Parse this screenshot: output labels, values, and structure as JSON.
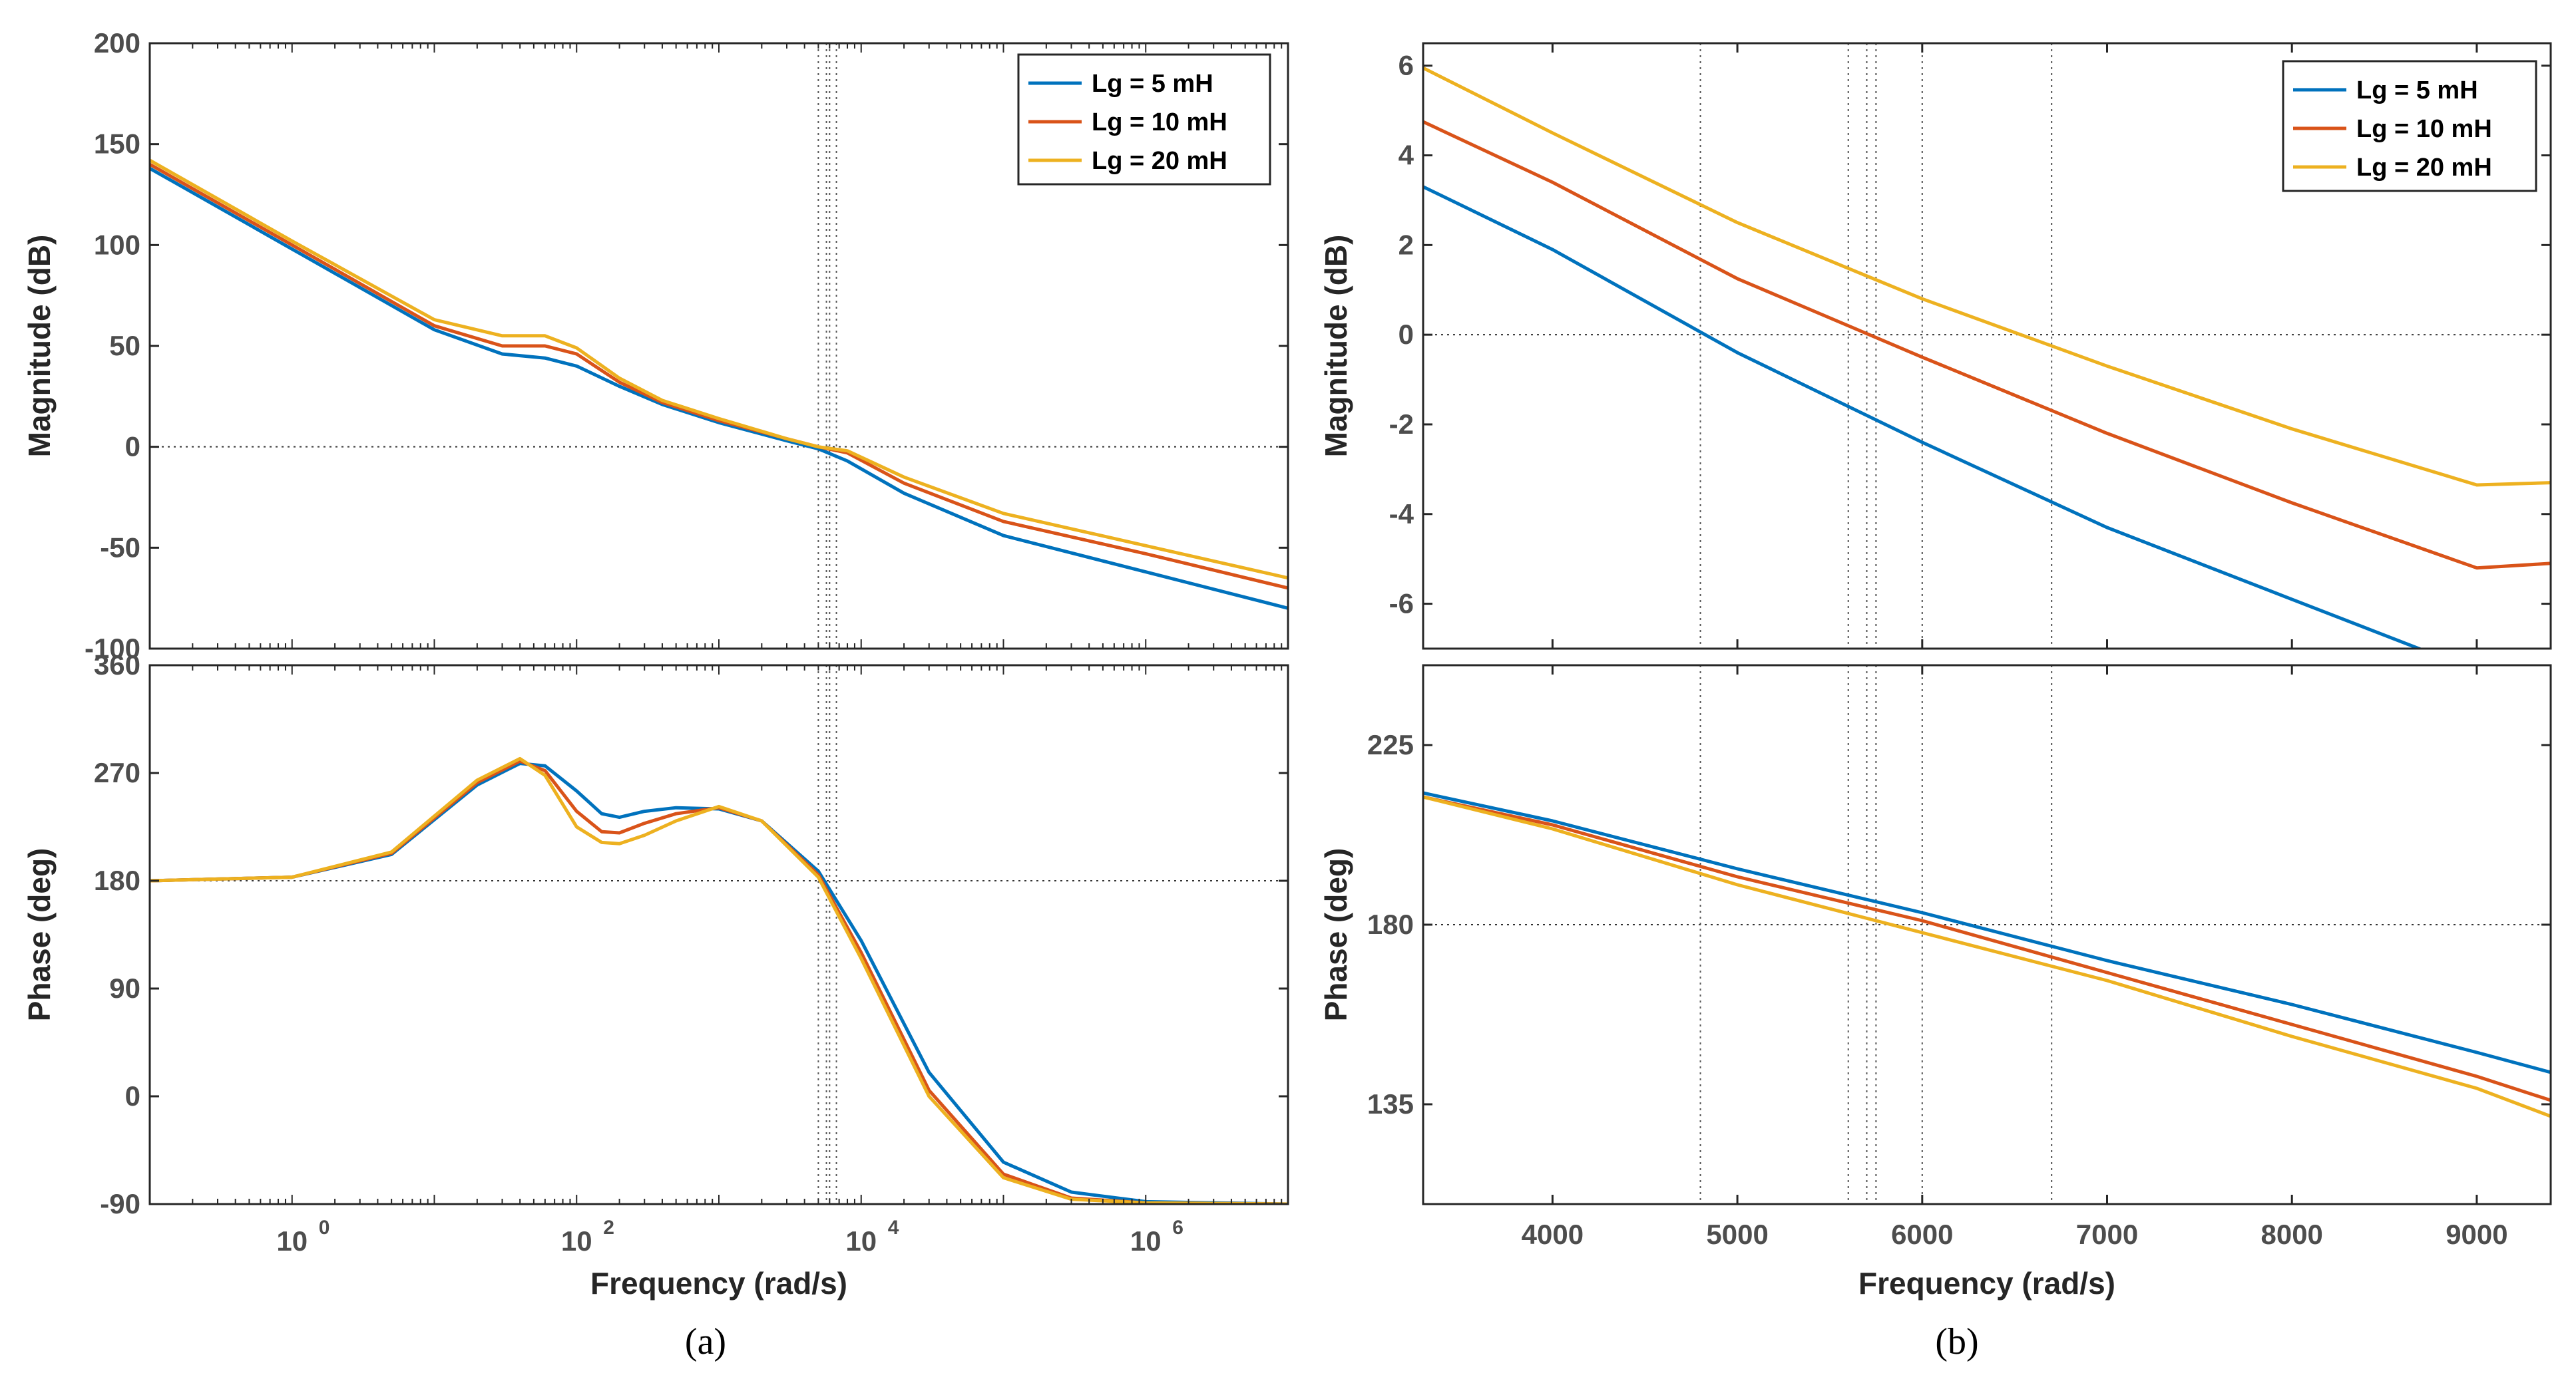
{
  "colors": {
    "s1": "#0072BD",
    "s2": "#D95319",
    "s3": "#EDB120",
    "axis": "#262626",
    "marker": "#555555"
  },
  "legend": [
    "Lg = 5 mH",
    "Lg = 10 mH",
    "Lg = 20 mH"
  ],
  "chart_data": [
    {
      "panel": "(a)",
      "type": "line",
      "xscale": "log",
      "xlim": [
        0.1,
        10000000
      ],
      "xlabel": "Frequency  (rad/s)",
      "xticks": [
        1,
        100,
        10000,
        1000000
      ],
      "xtick_labels": [
        "10",
        "10",
        "10",
        "10"
      ],
      "xtick_exps": [
        "0",
        "2",
        "4",
        "6"
      ],
      "magnitude": {
        "ylabel": "Magnitude (dB)",
        "ylim": [
          -100,
          200
        ],
        "yticks": [
          -100,
          -50,
          0,
          50,
          100,
          150,
          200
        ],
        "ytick_labels": [
          "-100",
          "-50",
          "0",
          "50",
          "100",
          "150",
          "200"
        ],
        "x": [
          0.1,
          1,
          10,
          30,
          60,
          100,
          200,
          400,
          1000,
          3000,
          5000,
          8000,
          20000,
          100000,
          1000000,
          10000000
        ],
        "series": [
          {
            "name": "Lg = 5 mH",
            "values": [
              138,
              98,
              58,
              46,
              44,
              40,
              30,
              21,
              12,
              3,
              -1,
              -7,
              -23,
              -44,
              -62,
              -80
            ]
          },
          {
            "name": "Lg = 10 mH",
            "values": [
              140,
              100,
              60,
              50,
              50,
              46,
              32,
              22,
              13,
              4,
              0,
              -3,
              -18,
              -37,
              -53,
              -70
            ]
          },
          {
            "name": "Lg = 20 mH",
            "values": [
              142,
              102,
              63,
              55,
              55,
              49,
              34,
              23,
              14,
              4,
              0,
              -2,
              -15,
              -33,
              -49,
              -65
            ]
          }
        ]
      },
      "phase": {
        "ylabel": "Phase (deg)",
        "ylim": [
          -90,
          360
        ],
        "yticks": [
          -90,
          0,
          90,
          180,
          270,
          360
        ],
        "ytick_labels": [
          "-90",
          "0",
          "90",
          "180",
          "270",
          "360"
        ],
        "x": [
          0.1,
          1,
          5,
          20,
          40,
          60,
          100,
          150,
          200,
          300,
          500,
          1000,
          2000,
          5000,
          10000,
          30000,
          100000,
          300000,
          1000000,
          10000000
        ],
        "series": [
          {
            "name": "Lg = 5 mH",
            "values": [
              180,
              183,
              202,
              260,
              278,
              276,
              255,
              236,
              233,
              238,
              241,
              240,
              230,
              188,
              130,
              20,
              -55,
              -80,
              -88,
              -90
            ]
          },
          {
            "name": "Lg = 10 mH",
            "values": [
              180,
              183,
              203,
              262,
              280,
              272,
              238,
              221,
              220,
              228,
              236,
              241,
              230,
              185,
              120,
              5,
              -65,
              -85,
              -89,
              -90
            ]
          },
          {
            "name": "Lg = 20 mH",
            "values": [
              180,
              183,
              204,
              264,
              282,
              268,
              225,
              212,
              211,
              218,
              230,
              242,
              230,
              183,
              115,
              0,
              -68,
              -86,
              -89,
              -90
            ]
          }
        ]
      },
      "crossover_markers": [
        5000,
        5700,
        6000,
        6700
      ],
      "reference_lines": {
        "magnitude": 0,
        "phase": 180
      }
    },
    {
      "panel": "(b)",
      "type": "line",
      "xscale": "linear",
      "xlim": [
        3300,
        9400
      ],
      "xlabel": "Frequency  (rad/s)",
      "xticks": [
        4000,
        5000,
        6000,
        7000,
        8000,
        9000
      ],
      "xtick_labels": [
        "4000",
        "5000",
        "6000",
        "7000",
        "8000",
        "9000"
      ],
      "magnitude": {
        "ylabel": "Magnitude (dB)",
        "ylim": [
          -7,
          6.5
        ],
        "yticks": [
          -6,
          -4,
          -2,
          0,
          2,
          4,
          6
        ],
        "ytick_labels": [
          "-6",
          "-4",
          "-2",
          "0",
          "2",
          "4",
          "6"
        ],
        "x": [
          3300,
          4000,
          5000,
          6000,
          7000,
          8000,
          9000,
          9400
        ],
        "series": [
          {
            "name": "Lg = 5 mH",
            "values": [
              3.3,
              1.9,
              -0.4,
              -2.4,
              -4.3,
              -5.9,
              -7.5,
              -8.1
            ]
          },
          {
            "name": "Lg = 10 mH",
            "values": [
              4.75,
              3.4,
              1.25,
              -0.5,
              -2.2,
              -3.75,
              -5.2,
              -5.1
            ]
          },
          {
            "name": "Lg = 20 mH",
            "values": [
              5.95,
              4.5,
              2.5,
              0.8,
              -0.7,
              -2.1,
              -3.35,
              -3.3
            ]
          }
        ]
      },
      "phase": {
        "ylabel": "Phase (deg)",
        "ylim": [
          110,
          245
        ],
        "yticks": [
          135,
          180,
          225
        ],
        "ytick_labels": [
          "135",
          "180",
          "225"
        ],
        "x": [
          3300,
          4000,
          5000,
          6000,
          7000,
          8000,
          9000,
          9400
        ],
        "series": [
          {
            "name": "Lg = 5 mH",
            "values": [
              213,
              206,
              194,
              183,
              171,
              160,
              148,
              143
            ]
          },
          {
            "name": "Lg = 10 mH",
            "values": [
              212,
              205,
              192,
              181,
              168,
              155,
              142,
              136
            ]
          },
          {
            "name": "Lg = 20 mH",
            "values": [
              212,
              204,
              190,
              178,
              166,
              152,
              139,
              132
            ]
          }
        ]
      },
      "crossover_markers": [
        4800,
        5600,
        5700,
        5750,
        6000,
        6700
      ],
      "reference_lines": {
        "magnitude": 0,
        "phase": 180
      }
    }
  ],
  "captions": [
    "(a)",
    "(b)"
  ]
}
